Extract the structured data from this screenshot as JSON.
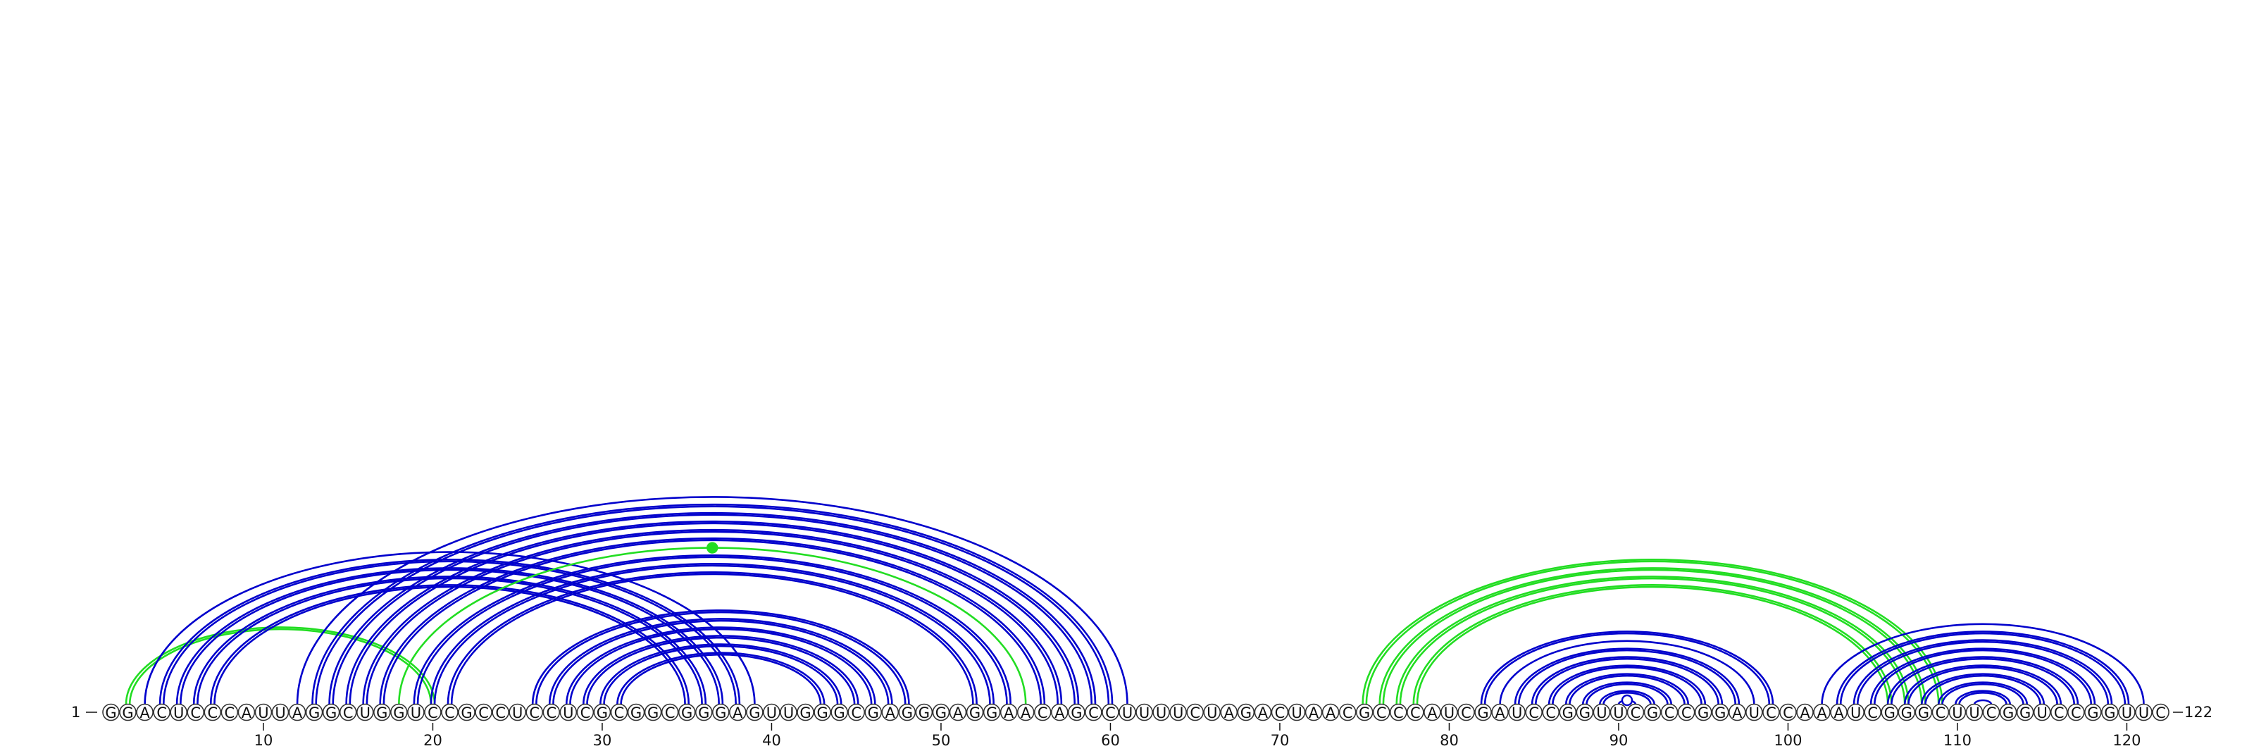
{
  "diagram": {
    "sequence": "GGACUCCCAUUAGGCUGGUCCGCCUCCUCGCGGCGGGAGUUGGGCGAGGGAGGAACAGCCUUUUCUAGACUAACGCCCAUCGAUCCGGUUCGCCGGAUCCAAAUCGGGCUUCGGUCCGGUUC",
    "start_label": "1",
    "end_label": "122",
    "ticks": [
      10,
      20,
      30,
      40,
      50,
      60,
      70,
      80,
      90,
      100,
      110,
      120
    ],
    "colors": {
      "primary": "#0000cc",
      "alternate": "#22dd22"
    },
    "pairs": [
      {
        "i": 2,
        "j": 20,
        "color": "alternate",
        "double": true
      },
      {
        "i": 3,
        "j": 39,
        "color": "primary",
        "double": false
      },
      {
        "i": 4,
        "j": 38,
        "color": "primary",
        "double": true
      },
      {
        "i": 5,
        "j": 37,
        "color": "primary",
        "double": true
      },
      {
        "i": 6,
        "j": 36,
        "color": "primary",
        "double": true
      },
      {
        "i": 7,
        "j": 35,
        "color": "primary",
        "double": true
      },
      {
        "i": 12,
        "j": 61,
        "color": "primary",
        "double": false
      },
      {
        "i": 13,
        "j": 60,
        "color": "primary",
        "double": true
      },
      {
        "i": 14,
        "j": 59,
        "color": "primary",
        "double": true
      },
      {
        "i": 15,
        "j": 58,
        "color": "primary",
        "double": true
      },
      {
        "i": 16,
        "j": 57,
        "color": "primary",
        "double": true
      },
      {
        "i": 17,
        "j": 56,
        "color": "primary",
        "double": true
      },
      {
        "i": 18,
        "j": 55,
        "color": "alternate",
        "double": false,
        "marker": true
      },
      {
        "i": 19,
        "j": 54,
        "color": "primary",
        "double": true
      },
      {
        "i": 20,
        "j": 53,
        "color": "primary",
        "double": true
      },
      {
        "i": 21,
        "j": 52,
        "color": "primary",
        "double": true
      },
      {
        "i": 26,
        "j": 48,
        "color": "primary",
        "double": true
      },
      {
        "i": 27,
        "j": 47,
        "color": "primary",
        "double": true
      },
      {
        "i": 28,
        "j": 46,
        "color": "primary",
        "double": true
      },
      {
        "i": 29,
        "j": 45,
        "color": "primary",
        "double": true
      },
      {
        "i": 30,
        "j": 44,
        "color": "primary",
        "double": true
      },
      {
        "i": 31,
        "j": 43,
        "color": "primary",
        "double": true
      },
      {
        "i": 75,
        "j": 109,
        "color": "alternate",
        "double": true
      },
      {
        "i": 76,
        "j": 108,
        "color": "alternate",
        "double": true
      },
      {
        "i": 77,
        "j": 107,
        "color": "alternate",
        "double": true
      },
      {
        "i": 78,
        "j": 106,
        "color": "alternate",
        "double": true
      },
      {
        "i": 82,
        "j": 99,
        "color": "primary",
        "double": true
      },
      {
        "i": 83,
        "j": 98,
        "color": "primary",
        "double": false
      },
      {
        "i": 84,
        "j": 97,
        "color": "primary",
        "double": true
      },
      {
        "i": 85,
        "j": 96,
        "color": "primary",
        "double": true
      },
      {
        "i": 86,
        "j": 95,
        "color": "primary",
        "double": true
      },
      {
        "i": 87,
        "j": 94,
        "color": "primary",
        "double": true
      },
      {
        "i": 88,
        "j": 93,
        "color": "primary",
        "double": true
      },
      {
        "i": 89,
        "j": 92,
        "color": "primary",
        "double": true
      },
      {
        "i": 90,
        "j": 91,
        "color": "primary",
        "double": false,
        "marker": true
      },
      {
        "i": 102,
        "j": 121,
        "color": "primary",
        "double": false
      },
      {
        "i": 103,
        "j": 120,
        "color": "primary",
        "double": true
      },
      {
        "i": 104,
        "j": 119,
        "color": "primary",
        "double": true
      },
      {
        "i": 105,
        "j": 118,
        "color": "primary",
        "double": true
      },
      {
        "i": 106,
        "j": 117,
        "color": "primary",
        "double": true
      },
      {
        "i": 107,
        "j": 116,
        "color": "primary",
        "double": true
      },
      {
        "i": 108,
        "j": 115,
        "color": "primary",
        "double": true
      },
      {
        "i": 109,
        "j": 114,
        "color": "primary",
        "double": true
      },
      {
        "i": 110,
        "j": 113,
        "color": "primary",
        "double": true
      },
      {
        "i": 111,
        "j": 112,
        "color": "primary",
        "double": false
      }
    ]
  }
}
